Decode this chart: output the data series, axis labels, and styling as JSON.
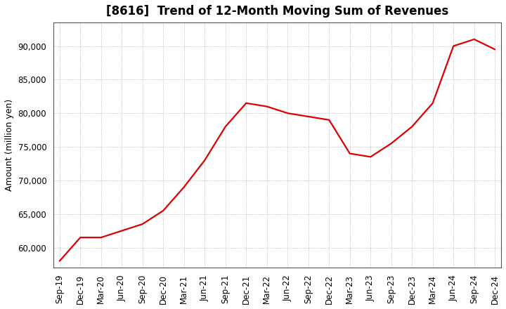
{
  "title": "[8616]  Trend of 12-Month Moving Sum of Revenues",
  "ylabel": "Amount (million yen)",
  "background_color": "#ffffff",
  "line_color": "#dd0000",
  "grid_color": "#999999",
  "x_labels": [
    "Sep-19",
    "Dec-19",
    "Mar-20",
    "Jun-20",
    "Sep-20",
    "Dec-20",
    "Mar-21",
    "Jun-21",
    "Sep-21",
    "Dec-21",
    "Mar-22",
    "Jun-22",
    "Sep-22",
    "Dec-22",
    "Mar-23",
    "Jun-23",
    "Sep-23",
    "Dec-23",
    "Mar-24",
    "Jun-24",
    "Sep-24",
    "Dec-24"
  ],
  "y_values": [
    58000,
    61500,
    61500,
    62500,
    63500,
    65500,
    69000,
    73000,
    78000,
    81500,
    81000,
    80000,
    79500,
    79000,
    74000,
    73500,
    75500,
    78000,
    81500,
    90000,
    91000,
    89500
  ],
  "ylim": [
    57000,
    93500
  ],
  "yticks": [
    60000,
    65000,
    70000,
    75000,
    80000,
    85000,
    90000
  ],
  "title_fontsize": 12,
  "axis_fontsize": 9,
  "tick_fontsize": 8.5
}
